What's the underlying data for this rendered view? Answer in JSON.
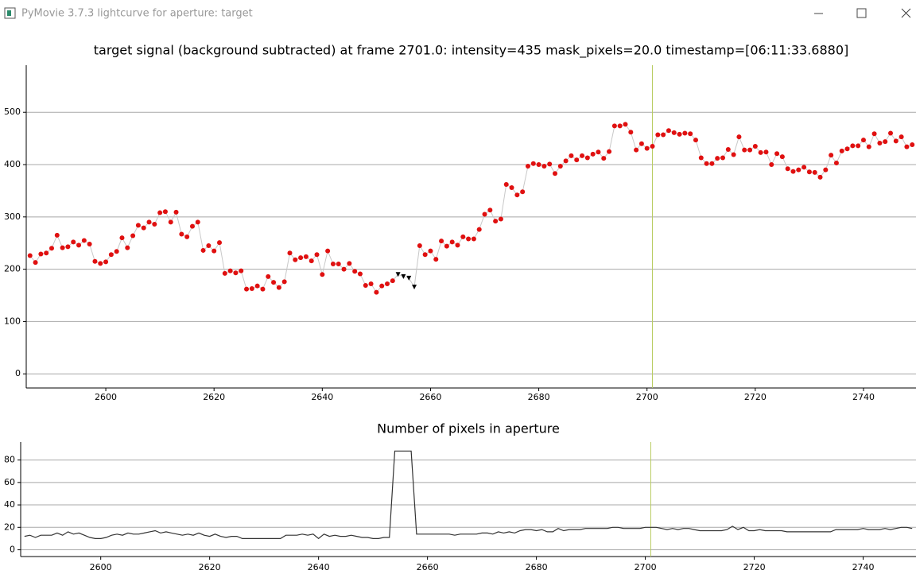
{
  "window": {
    "title": "PyMovie 3.7.3 lightcurve for aperture: target"
  },
  "chart_data": [
    {
      "type": "scatter",
      "title": "target signal (background subtracted) at frame 2701.0: intensity=435 mask_pixels=20.0 timestamp=[06:11:33.6880]",
      "x": [
        2586,
        2587,
        2588,
        2589,
        2590,
        2591,
        2592,
        2593,
        2594,
        2595,
        2596,
        2597,
        2598,
        2599,
        2600,
        2601,
        2602,
        2603,
        2604,
        2605,
        2606,
        2607,
        2608,
        2609,
        2610,
        2611,
        2612,
        2613,
        2614,
        2615,
        2616,
        2617,
        2618,
        2619,
        2620,
        2621,
        2622,
        2623,
        2624,
        2625,
        2626,
        2627,
        2628,
        2629,
        2630,
        2631,
        2632,
        2633,
        2634,
        2635,
        2636,
        2637,
        2638,
        2639,
        2640,
        2641,
        2642,
        2643,
        2644,
        2645,
        2646,
        2647,
        2648,
        2649,
        2650,
        2651,
        2652,
        2653,
        2654,
        2655,
        2656,
        2657,
        2658,
        2659,
        2660,
        2661,
        2662,
        2663,
        2664,
        2665,
        2666,
        2667,
        2668,
        2669,
        2670,
        2671,
        2672,
        2673,
        2674,
        2675,
        2676,
        2677,
        2678,
        2679,
        2680,
        2681,
        2682,
        2683,
        2684,
        2685,
        2686,
        2687,
        2688,
        2689,
        2690,
        2691,
        2692,
        2693,
        2694,
        2695,
        2696,
        2697,
        2698,
        2699,
        2700,
        2701,
        2702,
        2703,
        2704,
        2705,
        2706,
        2707,
        2708,
        2709,
        2710,
        2711,
        2712,
        2713,
        2714,
        2715,
        2716,
        2717,
        2718,
        2719,
        2720,
        2721,
        2722,
        2723,
        2724,
        2725,
        2726,
        2727,
        2728,
        2729,
        2730,
        2731,
        2732,
        2733,
        2734,
        2735,
        2736,
        2737,
        2738,
        2739,
        2740,
        2741,
        2742,
        2743,
        2744,
        2745,
        2746,
        2747,
        2748,
        2749
      ],
      "values": [
        226,
        213,
        229,
        231,
        240,
        265,
        241,
        243,
        252,
        246,
        255,
        248,
        215,
        211,
        214,
        228,
        234,
        260,
        241,
        264,
        284,
        279,
        290,
        286,
        308,
        310,
        290,
        309,
        267,
        262,
        282,
        290,
        236,
        245,
        235,
        251,
        192,
        197,
        193,
        197,
        162,
        163,
        168,
        162,
        186,
        175,
        165,
        176,
        231,
        218,
        222,
        224,
        216,
        228,
        190,
        235,
        210,
        210,
        200,
        211,
        196,
        191,
        169,
        172,
        156,
        168,
        172,
        178,
        190,
        186,
        183,
        166,
        245,
        228,
        235,
        219,
        254,
        244,
        252,
        246,
        262,
        258,
        258,
        276,
        305,
        313,
        292,
        296,
        362,
        356,
        342,
        348,
        397,
        402,
        400,
        397,
        401,
        383,
        397,
        407,
        417,
        409,
        417,
        413,
        420,
        424,
        412,
        425,
        474,
        474,
        477,
        462,
        428,
        440,
        431,
        435,
        457,
        457,
        465,
        461,
        458,
        460,
        459,
        447,
        413,
        402,
        402,
        412,
        413,
        429,
        419,
        453,
        428,
        428,
        435,
        423,
        424,
        400,
        421,
        415,
        392,
        387,
        390,
        395,
        386,
        385,
        376,
        390,
        418,
        403,
        426,
        430,
        436,
        436,
        447,
        434,
        459,
        441,
        444,
        460,
        445,
        453,
        434,
        438
      ],
      "flagged_x": [
        2654,
        2655,
        2656,
        2657
      ],
      "color": "#e01010",
      "flagged_color": "#000000",
      "line_color": "#c8c8c8",
      "cursor_x": 2701,
      "cursor_color": "#b8cc60",
      "xlim": [
        2585.3,
        2749.7
      ],
      "ylim": [
        -27,
        590
      ],
      "xticks": [
        2600,
        2620,
        2640,
        2660,
        2680,
        2700,
        2720,
        2740
      ],
      "yticks": [
        0,
        100,
        200,
        300,
        400,
        500
      ],
      "grid": true
    },
    {
      "type": "line",
      "title": "Number of pixels in aperture",
      "x": [
        2586,
        2587,
        2588,
        2589,
        2590,
        2591,
        2592,
        2593,
        2594,
        2595,
        2596,
        2597,
        2598,
        2599,
        2600,
        2601,
        2602,
        2603,
        2604,
        2605,
        2606,
        2607,
        2608,
        2609,
        2610,
        2611,
        2612,
        2613,
        2614,
        2615,
        2616,
        2617,
        2618,
        2619,
        2620,
        2621,
        2622,
        2623,
        2624,
        2625,
        2626,
        2627,
        2628,
        2629,
        2630,
        2631,
        2632,
        2633,
        2634,
        2635,
        2636,
        2637,
        2638,
        2639,
        2640,
        2641,
        2642,
        2643,
        2644,
        2645,
        2646,
        2647,
        2648,
        2649,
        2650,
        2651,
        2652,
        2653,
        2654,
        2655,
        2656,
        2657,
        2658,
        2659,
        2660,
        2661,
        2662,
        2663,
        2664,
        2665,
        2666,
        2667,
        2668,
        2669,
        2670,
        2671,
        2672,
        2673,
        2674,
        2675,
        2676,
        2677,
        2678,
        2679,
        2680,
        2681,
        2682,
        2683,
        2684,
        2685,
        2686,
        2687,
        2688,
        2689,
        2690,
        2691,
        2692,
        2693,
        2694,
        2695,
        2696,
        2697,
        2698,
        2699,
        2700,
        2701,
        2702,
        2703,
        2704,
        2705,
        2706,
        2707,
        2708,
        2709,
        2710,
        2711,
        2712,
        2713,
        2714,
        2715,
        2716,
        2717,
        2718,
        2719,
        2720,
        2721,
        2722,
        2723,
        2724,
        2725,
        2726,
        2727,
        2728,
        2729,
        2730,
        2731,
        2732,
        2733,
        2734,
        2735,
        2736,
        2737,
        2738,
        2739,
        2740,
        2741,
        2742,
        2743,
        2744,
        2745,
        2746,
        2747,
        2748,
        2749
      ],
      "values": [
        12,
        13,
        11,
        13,
        13,
        13,
        15,
        13,
        16,
        14,
        15,
        13,
        11,
        10,
        10,
        11,
        13,
        14,
        13,
        15,
        14,
        14,
        15,
        16,
        17,
        15,
        16,
        15,
        14,
        13,
        14,
        13,
        15,
        13,
        12,
        14,
        12,
        11,
        12,
        12,
        10,
        10,
        10,
        10,
        10,
        10,
        10,
        10,
        13,
        13,
        13,
        14,
        13,
        14,
        10,
        14,
        12,
        13,
        12,
        12,
        13,
        12,
        11,
        11,
        10,
        10,
        11,
        11,
        88,
        88,
        88,
        88,
        14,
        14,
        14,
        14,
        14,
        14,
        14,
        13,
        14,
        14,
        14,
        14,
        15,
        15,
        14,
        16,
        15,
        16,
        15,
        17,
        18,
        18,
        17,
        18,
        16,
        16,
        19,
        17,
        18,
        18,
        18,
        19,
        19,
        19,
        19,
        19,
        20,
        20,
        19,
        19,
        19,
        19,
        20,
        20,
        20,
        19,
        18,
        19,
        18,
        19,
        19,
        18,
        17,
        17,
        17,
        17,
        17,
        18,
        21,
        18,
        20,
        17,
        17,
        18,
        17,
        17,
        17,
        17,
        16,
        16,
        16,
        16,
        16,
        16,
        16,
        16,
        16,
        18,
        18,
        18,
        18,
        18,
        19,
        18,
        18,
        18,
        19,
        18,
        19,
        20,
        20,
        19
      ],
      "color": "#333333",
      "cursor_x": 2701,
      "cursor_color": "#b8cc60",
      "xlim": [
        2585.3,
        2749.7
      ],
      "ylim": [
        -6,
        96
      ],
      "xticks": [
        2600,
        2620,
        2640,
        2660,
        2680,
        2700,
        2720,
        2740
      ],
      "yticks": [
        0,
        20,
        40,
        60,
        80
      ],
      "grid": true
    }
  ]
}
